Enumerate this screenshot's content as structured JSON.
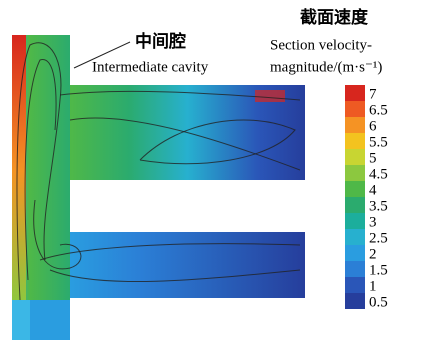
{
  "annotation": {
    "title": "中间腔",
    "subtitle": "Intermediate cavity"
  },
  "colorbar": {
    "title": "截面速度",
    "label_line1": "Section velocity-",
    "label_line2": "magnitude/(m·s⁻¹)",
    "ticks": [
      7,
      6.5,
      6,
      5.5,
      5,
      4.5,
      4,
      3.5,
      3,
      2.5,
      2,
      1.5,
      1,
      0.5
    ],
    "colors": [
      "#d7261e",
      "#ee5a23",
      "#f59324",
      "#f3c31f",
      "#c8d532",
      "#8cc83f",
      "#4fb848",
      "#2bab6e",
      "#1cae9c",
      "#27b0cf",
      "#2a9de0",
      "#2b7fd6",
      "#2a56b8",
      "#263e9c"
    ]
  }
}
